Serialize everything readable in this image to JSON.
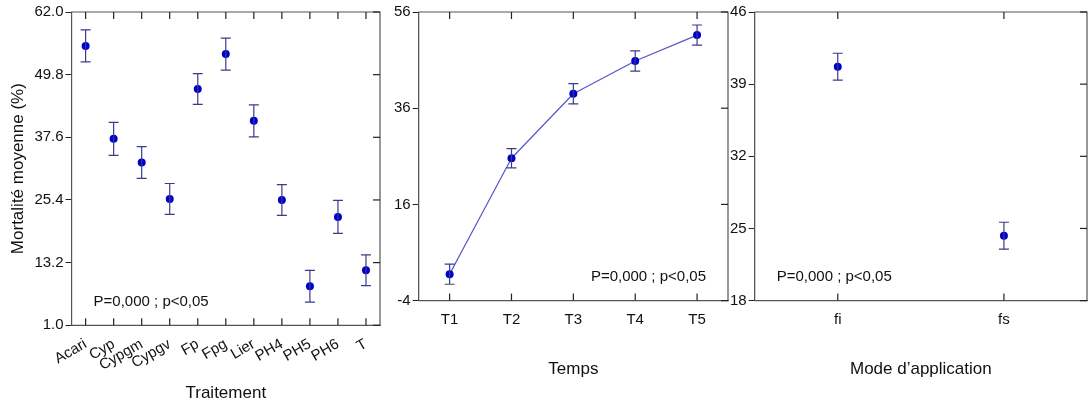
{
  "chart_data": [
    {
      "type": "scatter",
      "ylabel": "Mortalité moyenne (%)",
      "xlabel": "Traitement",
      "categories": [
        "Acari",
        "Cyp",
        "Cypgm",
        "Cypgv",
        "Fp",
        "Fpg",
        "Lier",
        "PH4",
        "PH5",
        "PH6",
        "T"
      ],
      "series": [
        {
          "color": "#0000cc",
          "values": [
            55.4,
            37.3,
            32.7,
            25.6,
            47.0,
            53.8,
            40.8,
            25.4,
            8.6,
            22.1,
            11.7
          ],
          "errors": [
            3.1,
            3.2,
            3.1,
            3.0,
            3.0,
            3.1,
            3.1,
            3.0,
            3.1,
            3.2,
            3.0
          ]
        }
      ],
      "ylim": [
        1.0,
        62.0
      ],
      "yticks": [
        {
          "value": 1.0,
          "label": "1.0"
        },
        13.2,
        25.4,
        37.6,
        49.8,
        {
          "value": 62.0,
          "label": "62.0"
        }
      ],
      "marker": "circle",
      "grid": false,
      "annotations": [
        "P=0,000 ; p<0,05"
      ]
    },
    {
      "type": "line",
      "xlabel": "Temps",
      "categories": [
        "T1",
        "T2",
        "T3",
        "T4",
        "T5"
      ],
      "series": [
        {
          "color": "#0000cc",
          "values": [
            1.5,
            25.6,
            39.0,
            45.8,
            51.2
          ],
          "errors": [
            2.1,
            2.0,
            2.1,
            2.1,
            2.1
          ]
        }
      ],
      "ylim": [
        -4,
        56
      ],
      "yticks": [
        -4,
        16,
        36,
        56
      ],
      "marker": "circle",
      "line_style": "solid",
      "grid": false,
      "annotations": [
        "P=0,000 ; p<0,05"
      ]
    },
    {
      "type": "scatter",
      "xlabel": "Mode d’application",
      "categories": [
        "fi",
        "fs"
      ],
      "series": [
        {
          "color": "#0000cc",
          "values": [
            40.7,
            24.3
          ],
          "errors": [
            1.3,
            1.3
          ]
        }
      ],
      "ylim": [
        18,
        46
      ],
      "yticks": [
        18,
        25,
        32,
        39,
        46
      ],
      "marker": "circle",
      "grid": false,
      "annotations": [
        "P=0,000 ; p<0,05"
      ]
    }
  ]
}
